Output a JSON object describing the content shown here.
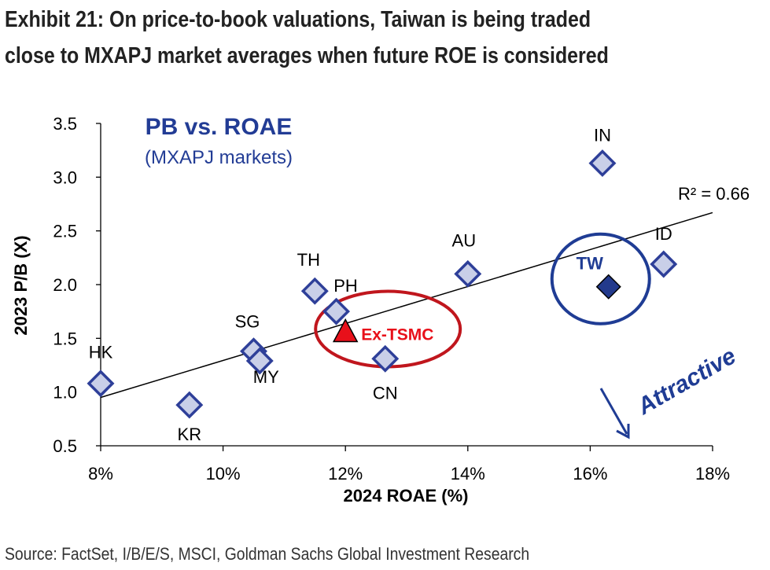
{
  "title": {
    "line1": "Exhibit 21: On price-to-book valuations, Taiwan is being traded",
    "line2": "close to MXAPJ market averages when future ROE is considered"
  },
  "source": "Source: FactSet, I/B/E/S, MSCI, Goldman Sachs Global Investment Research",
  "colors": {
    "marker_fill": "#c9cfe8",
    "marker_stroke": "#2e3f99",
    "tw_fill": "#233a8c",
    "circle_blue": "#1f3c94",
    "circle_red": "#c0161d",
    "extsmc_red": "#e8101a",
    "panel_title": "#223c95"
  },
  "chart_data": {
    "type": "scatter",
    "panel_title": "PB vs. ROAE",
    "panel_subtitle": "(MXAPJ markets)",
    "xlabel": "2024 ROAE (%)",
    "ylabel": "2023 P/B (X)",
    "xlim": [
      8,
      18
    ],
    "ylim": [
      0.5,
      3.5
    ],
    "x_ticks": [
      "8%",
      "10%",
      "12%",
      "14%",
      "16%",
      "18%"
    ],
    "y_ticks": [
      "0.5",
      "1.0",
      "1.5",
      "2.0",
      "2.5",
      "3.0",
      "3.5"
    ],
    "grid": false,
    "points": [
      {
        "label": "HK",
        "x": 8.0,
        "y": 1.08
      },
      {
        "label": "KR",
        "x": 9.45,
        "y": 0.88
      },
      {
        "label": "SG",
        "x": 10.5,
        "y": 1.38
      },
      {
        "label": "MY",
        "x": 10.6,
        "y": 1.29
      },
      {
        "label": "TH",
        "x": 11.5,
        "y": 1.94
      },
      {
        "label": "PH",
        "x": 11.85,
        "y": 1.75
      },
      {
        "label": "CN",
        "x": 12.65,
        "y": 1.31
      },
      {
        "label": "AU",
        "x": 14.0,
        "y": 2.1
      },
      {
        "label": "IN",
        "x": 16.2,
        "y": 3.13
      },
      {
        "label": "ID",
        "x": 17.2,
        "y": 2.19
      },
      {
        "label": "TW",
        "x": 16.3,
        "y": 1.98
      }
    ],
    "highlight_point": {
      "label": "Ex-TSMC",
      "x": 12.0,
      "y": 1.55
    },
    "trendline": {
      "x": [
        8.0,
        18.0
      ],
      "y": [
        0.95,
        2.67
      ]
    },
    "r_squared_label": "R² = 0.66",
    "annotation": "Attractive"
  }
}
